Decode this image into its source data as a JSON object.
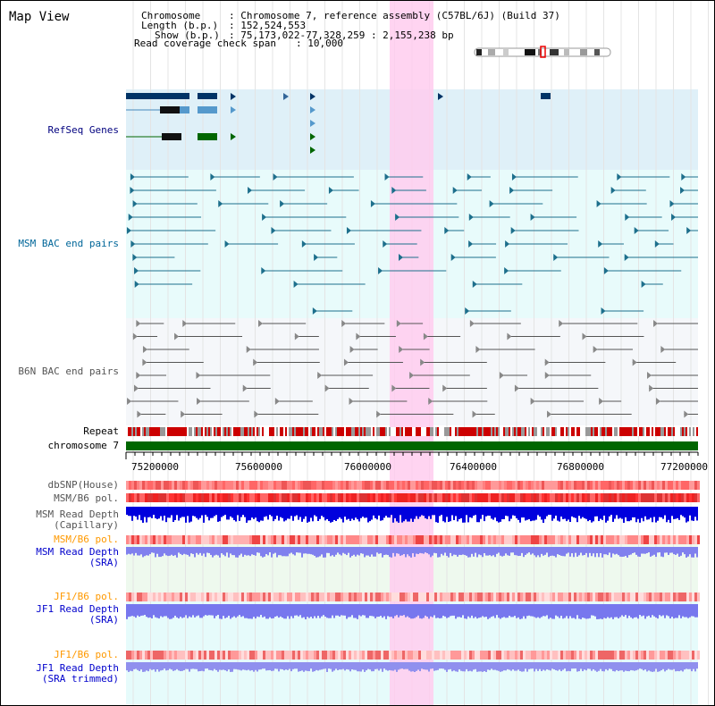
{
  "title": "Map View",
  "header": {
    "chromosome_label": "Chromosome",
    "chromosome_value": ": Chromosome 7, reference assembly (C57BL/6J) (Build 37)",
    "length_label": "Length (b.p.)",
    "length_value": ": 152,524,553",
    "show_label": "Show (b.p.)",
    "show_value": ": 75,173,022-77,328,259 : 2,155,238 bp",
    "span_label": "Read coverage check span",
    "span_value": ": 10,000"
  },
  "tracks": {
    "refseq": "RefSeq Genes",
    "msm_bac": "MSM BAC end pairs",
    "b6n_bac": "B6N BAC end pairs",
    "repeat": "Repeat",
    "chromosome": "chromosome 7",
    "dbsnp": "dbSNP(House)",
    "msm_b6_pol_1": "MSM/B6 pol.",
    "msm_depth_cap_1": "MSM Read Depth",
    "msm_depth_cap_2": "(Capillary)",
    "msm_b6_pol_2": "MSM/B6 pol.",
    "msm_depth_sra_1": "MSM Read Depth",
    "msm_depth_sra_2": "(SRA)",
    "jf1_b6_pol_1": "JF1/B6 pol.",
    "jf1_depth_sra_1": "JF1 Read Depth",
    "jf1_depth_sra_2": "(SRA)",
    "jf1_b6_pol_2": "JF1/B6 pol.",
    "jf1_depth_trim_1": "JF1 Read Depth",
    "jf1_depth_trim_2": "(SRA trimmed)"
  },
  "axis_ticks": [
    "75200000",
    "75600000",
    "76000000",
    "76400000",
    "76800000",
    "77200000"
  ],
  "colors": {
    "label_blue": "#00007f",
    "label_teal": "#006699",
    "label_gray": "#555555",
    "label_orange": "#ff9900",
    "highlight": "#ffccee",
    "refseq_bg": "#dff0f8",
    "msm_bg": "#e8fbfb",
    "chromosome_green": "#006600"
  }
}
